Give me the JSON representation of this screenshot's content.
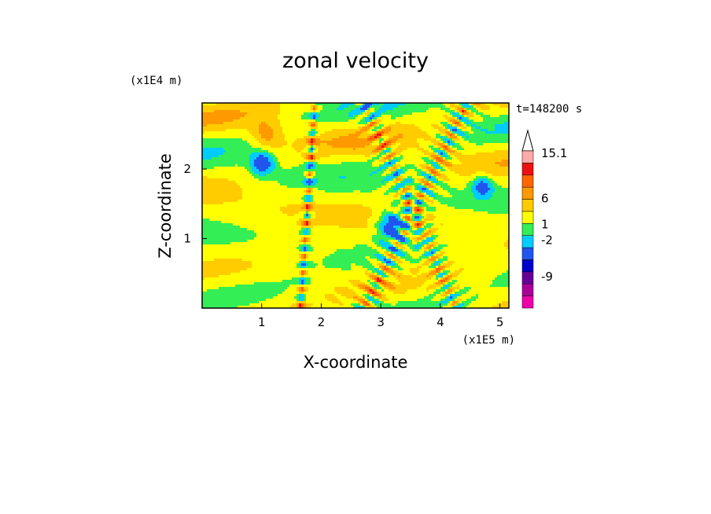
{
  "chart_data": {
    "type": "heatmap",
    "title": "zonal velocity",
    "xlabel": "X-coordinate",
    "ylabel": "Z-coordinate",
    "x_unit": "(x1E5 m)",
    "y_unit": "(x1E4 m)",
    "time_label": "t=148200 s",
    "xlim": [
      0,
      5.15
    ],
    "ylim": [
      0,
      2.95
    ],
    "x_ticks": [
      1,
      2,
      3,
      4,
      5
    ],
    "y_ticks": [
      1,
      2
    ],
    "colorbar": {
      "max_label": "15.1",
      "labels": [
        {
          "text": "15.1",
          "value": 15.1
        },
        {
          "text": "6",
          "value": 6
        },
        {
          "text": "1",
          "value": 1
        },
        {
          "text": "-2",
          "value": -2
        },
        {
          "text": "-9",
          "value": -9
        }
      ],
      "bands": [
        {
          "color": "#ee00aa"
        },
        {
          "color": "#aa0099"
        },
        {
          "color": "#660099"
        },
        {
          "color": "#0000cc"
        },
        {
          "color": "#2255ee"
        },
        {
          "color": "#00ccff"
        },
        {
          "color": "#33ee55"
        },
        {
          "color": "#ffff00"
        },
        {
          "color": "#ffcc00"
        },
        {
          "color": "#ff9900"
        },
        {
          "color": "#ff6600"
        },
        {
          "color": "#ee1111"
        },
        {
          "color": "#ffaaaa"
        }
      ]
    },
    "field_levels": [
      {
        "z": -12,
        "color": "#0000cc"
      },
      {
        "z": -6,
        "color": "#2255ee"
      },
      {
        "z": -3,
        "color": "#00ccff"
      },
      {
        "z": -1,
        "color": "#33ee55"
      },
      {
        "z": 1.2,
        "color": "#ffff00"
      },
      {
        "z": 3,
        "color": "#ffcc00"
      },
      {
        "z": 5,
        "color": "#ff9900"
      },
      {
        "z": 7,
        "color": "#ff6600"
      },
      {
        "z": 99,
        "color": "#ee1111"
      }
    ]
  }
}
